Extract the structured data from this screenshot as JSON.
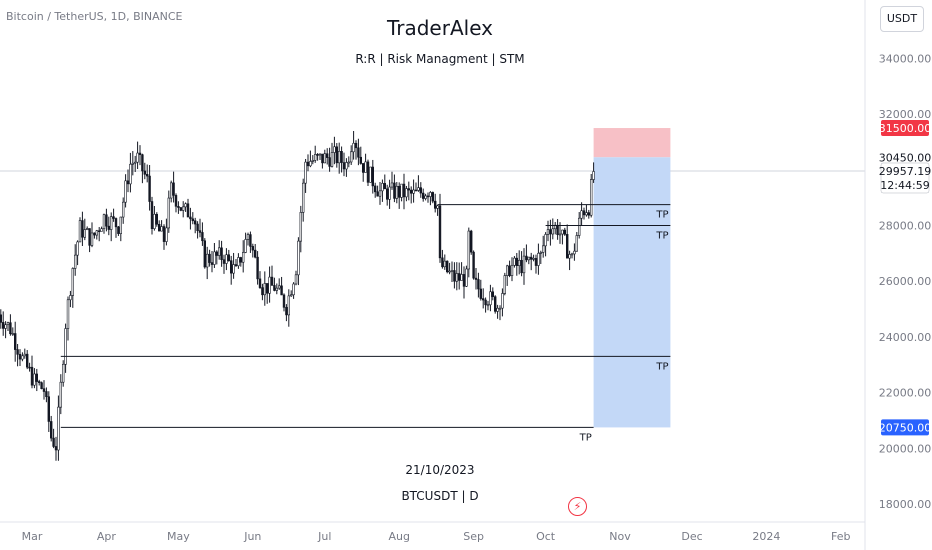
{
  "header": {
    "symbol": "Bitcoin / TetherUS, 1D, BINANCE",
    "currency_button": "USDT"
  },
  "watermark": {
    "title": "TraderAlex",
    "subtitle": "R:R | Risk Managment | STM",
    "date": "21/10/2023",
    "pair": "BTCUSDT | D"
  },
  "colors": {
    "up": "#131722",
    "down": "#131722",
    "stop_zone": "#f7c0c6",
    "target_zone": "#c3d8f7",
    "stop_label": "#f23645",
    "target_label": "#2962ff",
    "price_label": "#131722"
  },
  "icons": [
    "flash-icon"
  ],
  "chart_data": {
    "type": "candlestick",
    "symbol": "BTCUSDT",
    "timeframe": "1D",
    "y_range": [
      18000,
      36000
    ],
    "y_ticks": [
      18000,
      20000,
      22000,
      24000,
      26000,
      28000,
      32000,
      34000
    ],
    "y_tick_labels": [
      "18000.00",
      "20000.00",
      "22000.00",
      "24000.00",
      "26000.00",
      "28000.00",
      "32000.00",
      "34000.00"
    ],
    "x_ticks": [
      {
        "label": "Mar",
        "date": "2023-03-01"
      },
      {
        "label": "Apr",
        "date": "2023-04-01"
      },
      {
        "label": "May",
        "date": "2023-05-01"
      },
      {
        "label": "Jun",
        "date": "2023-06-01"
      },
      {
        "label": "Jul",
        "date": "2023-07-01"
      },
      {
        "label": "Aug",
        "date": "2023-08-01"
      },
      {
        "label": "Sep",
        "date": "2023-09-01"
      },
      {
        "label": "Oct",
        "date": "2023-10-01"
      },
      {
        "label": "Nov",
        "date": "2023-11-01"
      },
      {
        "label": "Dec",
        "date": "2023-12-01"
      },
      {
        "label": "2024",
        "date": "2024-01-01"
      },
      {
        "label": "Feb",
        "date": "2024-02-01"
      }
    ],
    "x_range": [
      "2023-02-15",
      "2024-02-20"
    ],
    "path": [
      [
        "2023-02-15",
        24800
      ],
      [
        "2023-02-20",
        24300
      ],
      [
        "2023-02-25",
        23200
      ],
      [
        "2023-03-02",
        22400
      ],
      [
        "2023-03-06",
        22100
      ],
      [
        "2023-03-09",
        20400
      ],
      [
        "2023-03-11",
        20100
      ],
      [
        "2023-03-13",
        22200
      ],
      [
        "2023-03-15",
        24500
      ],
      [
        "2023-03-18",
        26500
      ],
      [
        "2023-03-21",
        27900
      ],
      [
        "2023-03-26",
        27500
      ],
      [
        "2023-03-31",
        28300
      ],
      [
        "2023-04-06",
        28000
      ],
      [
        "2023-04-11",
        30200
      ],
      [
        "2023-04-14",
        30400
      ],
      [
        "2023-04-18",
        29600
      ],
      [
        "2023-04-20",
        28200
      ],
      [
        "2023-04-25",
        27500
      ],
      [
        "2023-04-28",
        29300
      ],
      [
        "2023-05-03",
        28500
      ],
      [
        "2023-05-07",
        28500
      ],
      [
        "2023-05-12",
        26800
      ],
      [
        "2023-05-20",
        26900
      ],
      [
        "2023-05-25",
        26300
      ],
      [
        "2023-05-30",
        27700
      ],
      [
        "2023-06-05",
        25800
      ],
      [
        "2023-06-10",
        25800
      ],
      [
        "2023-06-15",
        25100
      ],
      [
        "2023-06-19",
        26500
      ],
      [
        "2023-06-21",
        28500
      ],
      [
        "2023-06-23",
        30300
      ],
      [
        "2023-06-30",
        30400
      ],
      [
        "2023-07-05",
        30500
      ],
      [
        "2023-07-10",
        30200
      ],
      [
        "2023-07-13",
        31300
      ],
      [
        "2023-07-16",
        30300
      ],
      [
        "2023-07-24",
        29200
      ],
      [
        "2023-07-31",
        29200
      ],
      [
        "2023-08-07",
        29100
      ],
      [
        "2023-08-14",
        29300
      ],
      [
        "2023-08-17",
        28700
      ],
      [
        "2023-08-18",
        26600
      ],
      [
        "2023-08-24",
        26100
      ],
      [
        "2023-08-29",
        26100
      ],
      [
        "2023-08-30",
        27600
      ],
      [
        "2023-09-01",
        25900
      ],
      [
        "2023-09-11",
        25100
      ],
      [
        "2023-09-16",
        26500
      ],
      [
        "2023-09-22",
        26600
      ],
      [
        "2023-09-29",
        26900
      ],
      [
        "2023-10-02",
        28000
      ],
      [
        "2023-10-06",
        27900
      ],
      [
        "2023-10-12",
        26800
      ],
      [
        "2023-10-16",
        28500
      ],
      [
        "2023-10-19",
        28700
      ],
      [
        "2023-10-21",
        29957
      ]
    ],
    "seed": 7,
    "tp_lines": [
      {
        "label": "TP",
        "price": 28750,
        "from": "2023-08-17",
        "to": "2023-11-22"
      },
      {
        "label": "TP",
        "price": 28000,
        "from": "2023-10-01",
        "to": "2023-11-22"
      },
      {
        "label": "TP",
        "price": 23300,
        "from": "2023-03-13",
        "to": "2023-11-22"
      },
      {
        "label": "TP",
        "price": 20750,
        "from": "2023-03-13",
        "to": "2023-10-21"
      }
    ],
    "position": {
      "type": "short",
      "from": "2023-10-21",
      "to": "2023-11-22",
      "entry": 30450,
      "stop": 31500,
      "target": 20750
    },
    "price_labels": [
      {
        "text": "31500.00",
        "price": 31500,
        "kind": "stop"
      },
      {
        "text": "30450.00",
        "price": 30450,
        "kind": "price"
      },
      {
        "text": "29957.19",
        "price": 29957.19,
        "kind": "last"
      },
      {
        "text": "12:44:59",
        "kind": "timer"
      },
      {
        "text": "20750.00",
        "price": 20750,
        "kind": "target"
      }
    ],
    "last_price": 29957.19
  }
}
